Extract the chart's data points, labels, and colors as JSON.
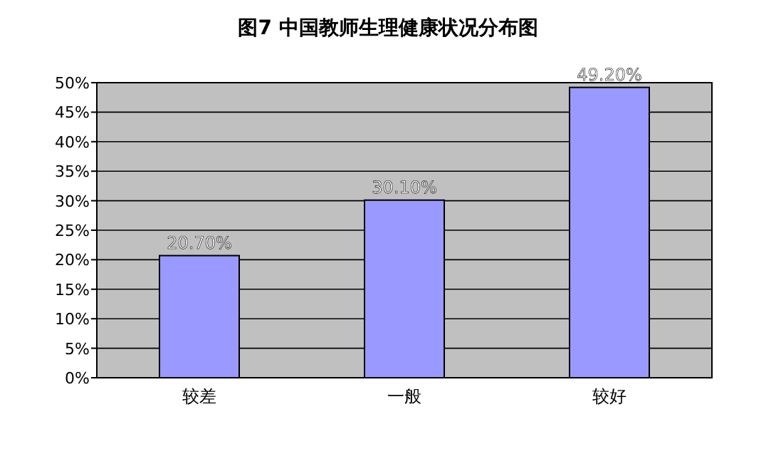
{
  "chart_data": {
    "type": "bar",
    "title": "图7  中国教师生理健康状况分布图",
    "categories": [
      "较差",
      "一般",
      "较好"
    ],
    "values": [
      20.7,
      30.1,
      49.2
    ],
    "value_labels": [
      "20.70%",
      "30.10%",
      "49.20%"
    ],
    "color": "#9999ff",
    "ylim": [
      0,
      50
    ],
    "yticks": [
      {
        "value": 0,
        "label": "0%"
      },
      {
        "value": 5,
        "label": "5%"
      },
      {
        "value": 10,
        "label": "10%"
      },
      {
        "value": 15,
        "label": "15%"
      },
      {
        "value": 20,
        "label": "20%"
      },
      {
        "value": 25,
        "label": "25%"
      },
      {
        "value": 30,
        "label": "30%"
      },
      {
        "value": 35,
        "label": "35%"
      },
      {
        "value": 40,
        "label": "40%"
      },
      {
        "value": 45,
        "label": "45%"
      },
      {
        "value": 50,
        "label": "50%"
      }
    ],
    "grid": "y"
  }
}
